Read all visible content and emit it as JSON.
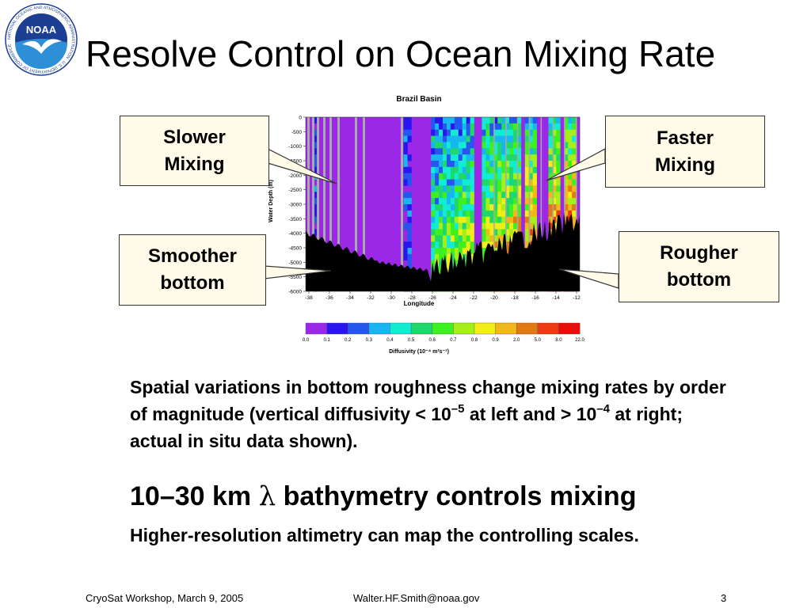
{
  "slide": {
    "title": "Resolve Control on Ocean Mixing Rate",
    "logo": {
      "text": "NOAA",
      "ring_text": "NATIONAL OCEANIC AND ATMOSPHERIC ADMINISTRATION · U.S. DEPARTMENT OF COMMERCE",
      "colors": {
        "ring": "#ffffff",
        "sky": "#1c3f94",
        "sea": "#2d8fd6",
        "gull": "#ffffff"
      }
    }
  },
  "figure": {
    "title": "Brazil Basin",
    "y_axis_label": "Water Depth (m)",
    "y_ticks": [
      "0",
      "-500",
      "-1000",
      "-1500",
      "-2000",
      "-2500",
      "-3000",
      "-3500",
      "-4000",
      "-4500",
      "-5000",
      "-5500",
      "-6000"
    ],
    "x_axis_label": "Longitude",
    "x_ticks": [
      "-38",
      "-36",
      "-34",
      "-32",
      "-30",
      "-28",
      "-26",
      "-24",
      "-22",
      "-20",
      "-18",
      "-16",
      "-14",
      "-12"
    ],
    "colorbar_label": "Diffusivity (10⁻⁴ m²s⁻¹)",
    "colorbar_ticks": [
      "0.0",
      "0.1",
      "0.2",
      "0.3",
      "0.4",
      "0.5",
      "0.6",
      "0.7",
      "0.8",
      "0.9",
      "2.0",
      "5.0",
      "8.0",
      "22.0"
    ],
    "colorbar_colors": [
      "#9a28e6",
      "#2a14f0",
      "#2656f0",
      "#18b6f0",
      "#12ecd2",
      "#1ed96a",
      "#3ef01e",
      "#a6f01a",
      "#f0ee16",
      "#f0b81a",
      "#e07a12",
      "#f03a14",
      "#e80e0e"
    ]
  },
  "callouts": {
    "slower": [
      "Slower",
      "Mixing"
    ],
    "faster": [
      "Faster",
      "Mixing"
    ],
    "smoother": [
      "Smoother",
      "bottom"
    ],
    "rougher": [
      "Rougher",
      "bottom"
    ]
  },
  "body": {
    "para_part1": "Spatial variations in bottom roughness change mixing rates by order of magnitude (vertical diffusivity < 10",
    "para_exp1": "–5",
    "para_part2": " at left and > 10",
    "para_exp2": "–4",
    "para_part3": " at right; actual in situ data shown).",
    "headline_part1": "10–30 km ",
    "headline_lambda": "λ",
    "headline_part2": " bathymetry controls mixing",
    "subline": "Higher-resolution altimetry can map the controlling scales."
  },
  "footer": {
    "left": "CryoSat Workshop, March 9, 2005",
    "center": "Walter.HF.Smith@noaa.gov",
    "page": "3"
  }
}
